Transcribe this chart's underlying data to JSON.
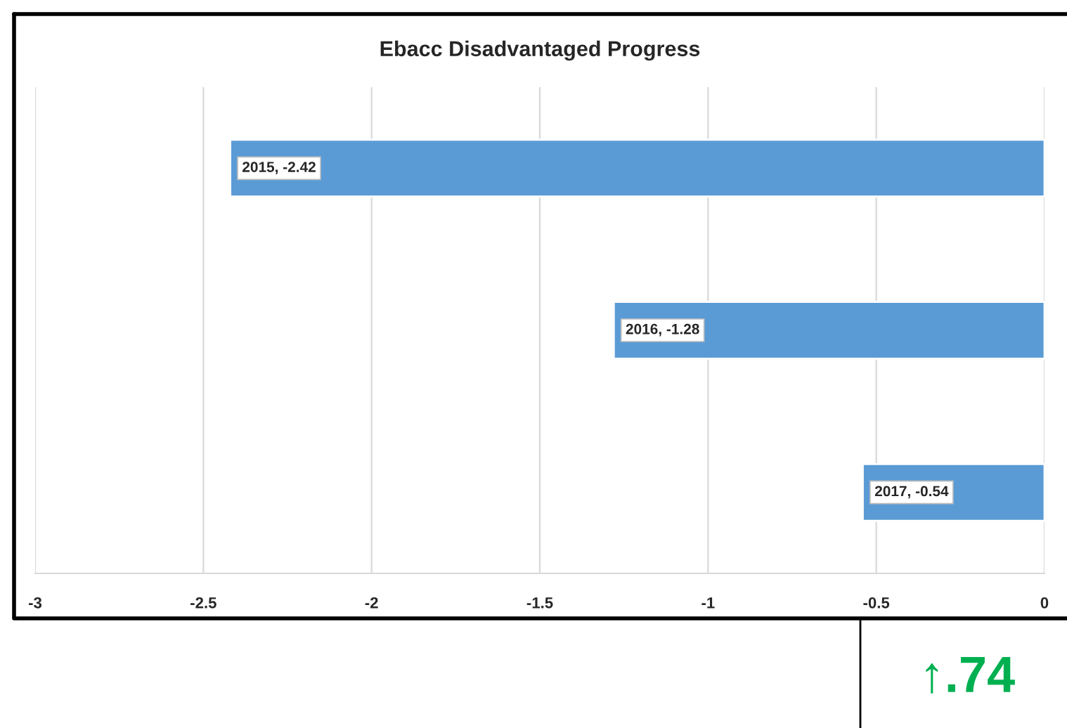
{
  "chart_data": {
    "type": "bar",
    "orientation": "horizontal",
    "title": "Ebacc Disadvantaged Progress",
    "categories": [
      null,
      null,
      null
    ],
    "values": [
      -2.42,
      -1.28,
      -0.54
    ],
    "value_labels": [
      "2015, -2.42",
      "2016, -1.28",
      "2017, -0.54"
    ],
    "color": "#5b9bd5",
    "xlim": [
      -3,
      0
    ],
    "xticks": [
      -3,
      -2.5,
      -2,
      -1.5,
      -1,
      -0.5,
      0
    ],
    "grid": "x",
    "legend": false,
    "annotations": [
      "↑.74"
    ]
  }
}
